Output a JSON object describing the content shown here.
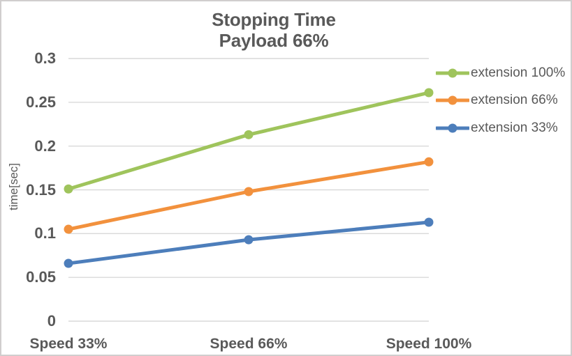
{
  "chart_data": {
    "type": "line",
    "title": "Stopping Time Payload 66%",
    "title_lines": [
      "Stopping Time",
      "Payload 66%"
    ],
    "ylabel": "time[sec]",
    "xlabel": "",
    "categories": [
      "Speed 33%",
      "Speed 66%",
      "Speed 100%"
    ],
    "series": [
      {
        "name": "extension 100%",
        "color": "#9FC45C",
        "values": [
          0.151,
          0.213,
          0.261
        ]
      },
      {
        "name": "extension 66%",
        "color": "#F2913D",
        "values": [
          0.105,
          0.148,
          0.182
        ]
      },
      {
        "name": "extension 33%",
        "color": "#4D7EBB",
        "values": [
          0.066,
          0.093,
          0.113
        ]
      }
    ],
    "ylim": [
      0,
      0.3
    ],
    "yticks": [
      0,
      0.05,
      0.1,
      0.15,
      0.2,
      0.25,
      0.3
    ],
    "ytick_labels": [
      "0",
      "0.05",
      "0.1",
      "0.15",
      "0.2",
      "0.25",
      "0.3"
    ],
    "grid": true,
    "legend_position": "right",
    "colors": {
      "text": "#595959",
      "gridline": "#D9D9D9",
      "frame_border": "#D0CECE",
      "background": "#FFFFFF"
    }
  }
}
